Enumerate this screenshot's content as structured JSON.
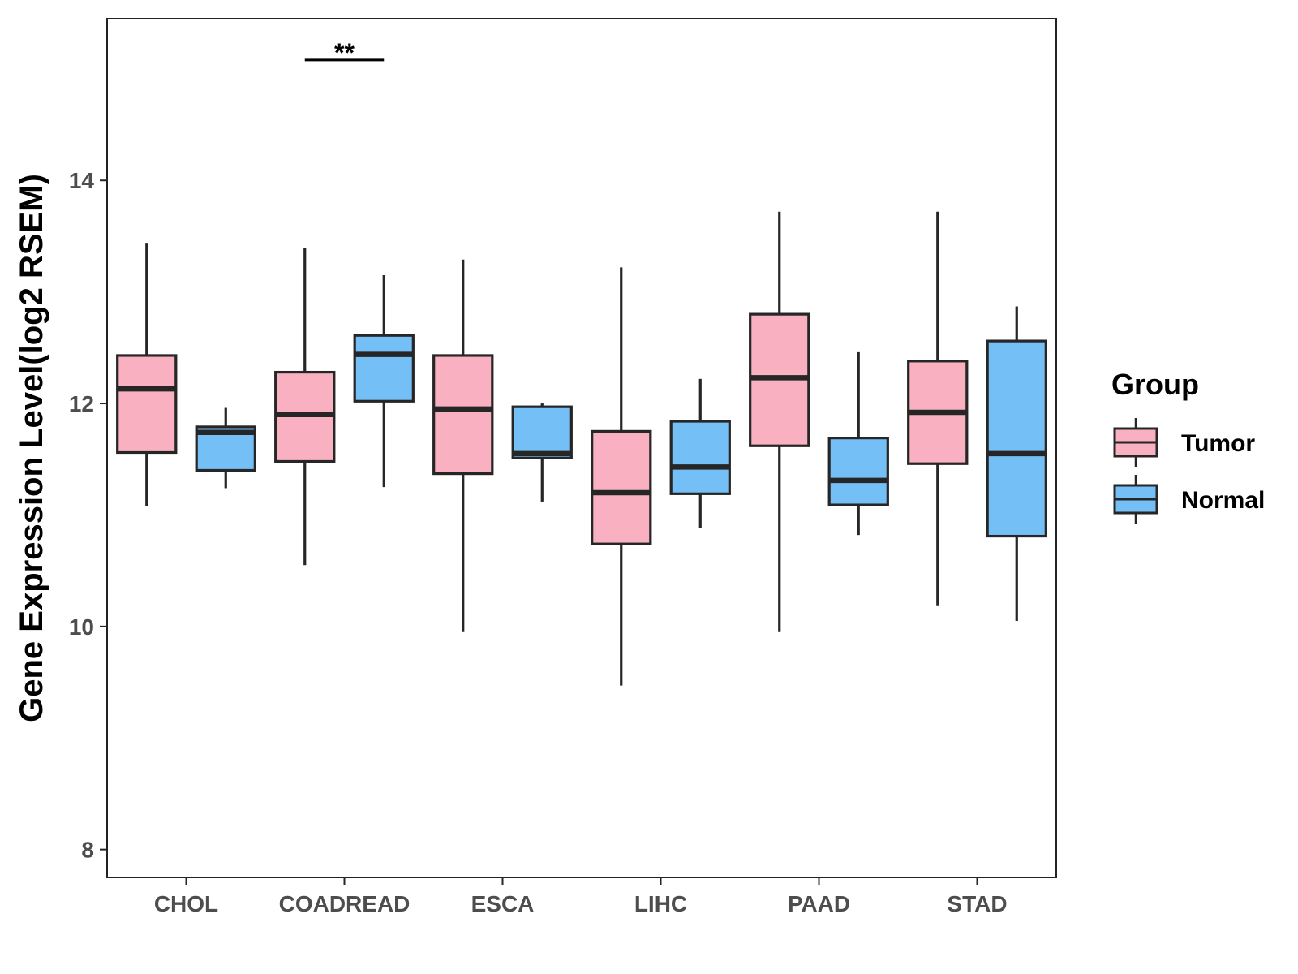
{
  "chart_data": {
    "type": "boxplot",
    "title": "",
    "xlabel": "",
    "ylabel": "Gene Expression Level(log2 RSEM)",
    "ylim": [
      7.75,
      15.45
    ],
    "yticks": [
      8,
      10,
      12,
      14
    ],
    "categories": [
      "CHOL",
      "COADREAD",
      "ESCA",
      "LIHC",
      "PAAD",
      "STAD"
    ],
    "legend": {
      "title": "Group",
      "position": "right",
      "entries": [
        {
          "name": "Tumor",
          "color": "#F9B0C1"
        },
        {
          "name": "Normal",
          "color": "#75BFF7"
        }
      ]
    },
    "series": [
      {
        "name": "Tumor",
        "color": "#F9B0C1",
        "boxes": [
          {
            "category": "CHOL",
            "min": 11.08,
            "q1": 11.56,
            "median": 12.13,
            "q3": 12.43,
            "max": 13.44
          },
          {
            "category": "COADREAD",
            "min": 10.55,
            "q1": 11.48,
            "median": 11.9,
            "q3": 12.28,
            "max": 13.39
          },
          {
            "category": "ESCA",
            "min": 9.95,
            "q1": 11.37,
            "median": 11.95,
            "q3": 12.43,
            "max": 13.29
          },
          {
            "category": "LIHC",
            "min": 9.47,
            "q1": 10.74,
            "median": 11.2,
            "q3": 11.75,
            "max": 13.22
          },
          {
            "category": "PAAD",
            "min": 9.95,
            "q1": 11.62,
            "median": 12.23,
            "q3": 12.8,
            "max": 13.72
          },
          {
            "category": "STAD",
            "min": 10.19,
            "q1": 11.46,
            "median": 11.92,
            "q3": 12.38,
            "max": 13.72
          }
        ]
      },
      {
        "name": "Normal",
        "color": "#75BFF7",
        "boxes": [
          {
            "category": "CHOL",
            "min": 11.24,
            "q1": 11.4,
            "median": 11.74,
            "q3": 11.79,
            "max": 11.96
          },
          {
            "category": "COADREAD",
            "min": 11.25,
            "q1": 12.02,
            "median": 12.44,
            "q3": 12.61,
            "max": 13.15
          },
          {
            "category": "ESCA",
            "min": 11.12,
            "q1": 11.51,
            "median": 11.55,
            "q3": 11.97,
            "max": 12.0
          },
          {
            "category": "LIHC",
            "min": 10.88,
            "q1": 11.19,
            "median": 11.43,
            "q3": 11.84,
            "max": 12.22
          },
          {
            "category": "PAAD",
            "min": 10.82,
            "q1": 11.09,
            "median": 11.31,
            "q3": 11.69,
            "max": 12.46
          },
          {
            "category": "STAD",
            "min": 10.05,
            "q1": 10.81,
            "median": 11.55,
            "q3": 12.56,
            "max": 12.87
          }
        ]
      }
    ],
    "annotations": [
      {
        "category": "COADREAD",
        "text": "**",
        "y": 15.08
      }
    ]
  }
}
